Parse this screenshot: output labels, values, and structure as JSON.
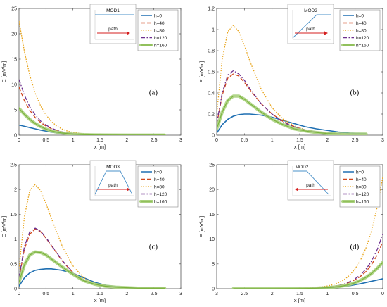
{
  "figure": {
    "background": "#ffffff"
  },
  "chart_data": [
    {
      "type": "line",
      "panel_label": "(a)",
      "xlabel": "x [m]",
      "ylabel": "E [mV/m]",
      "xlim": [
        0,
        3
      ],
      "ylim": [
        0,
        25
      ],
      "xticks": [
        0,
        0.5,
        1,
        1.5,
        2,
        2.5,
        3
      ],
      "yticks": [
        0,
        5,
        10,
        15,
        20,
        25
      ],
      "x_reversed": false,
      "legend_position": "top-right",
      "inset": {
        "title": "MOD1",
        "profile": "flat",
        "path_label": "path",
        "arrow": "right"
      },
      "series": [
        {
          "name": "h=0",
          "color": "#1f6fb2",
          "style": "solid",
          "x": [
            0,
            0.1,
            0.2,
            0.3,
            0.4,
            0.5,
            0.6,
            0.7,
            0.8,
            0.9,
            1.0,
            1.2,
            1.4,
            1.6,
            2.0,
            2.4,
            2.7
          ],
          "y": [
            2.0,
            1.75,
            1.5,
            1.25,
            1.0,
            0.8,
            0.6,
            0.45,
            0.33,
            0.25,
            0.18,
            0.1,
            0.06,
            0.04,
            0.02,
            0.01,
            0.01
          ]
        },
        {
          "name": "h=40",
          "color": "#d0461b",
          "style": "dashed",
          "x": [
            0,
            0.1,
            0.2,
            0.3,
            0.4,
            0.5,
            0.6,
            0.7,
            0.8,
            0.9,
            1.0,
            1.2,
            1.4,
            1.6,
            2.0,
            2.4,
            2.7
          ],
          "y": [
            9.5,
            6.8,
            4.9,
            3.5,
            2.5,
            1.8,
            1.3,
            0.9,
            0.6,
            0.42,
            0.3,
            0.15,
            0.08,
            0.05,
            0.02,
            0.01,
            0.01
          ]
        },
        {
          "name": "h=80",
          "color": "#e8a317",
          "style": "dotted",
          "x": [
            0,
            0.1,
            0.2,
            0.3,
            0.4,
            0.5,
            0.6,
            0.7,
            0.8,
            0.9,
            1.0,
            1.2,
            1.4,
            1.6,
            2.0,
            2.4,
            2.7
          ],
          "y": [
            22.5,
            16.5,
            11.8,
            8.3,
            5.8,
            4.0,
            2.7,
            1.8,
            1.2,
            0.8,
            0.55,
            0.25,
            0.12,
            0.06,
            0.02,
            0.01,
            0.01
          ]
        },
        {
          "name": "h=120",
          "color": "#6d2e8e",
          "style": "dashdot",
          "x": [
            0,
            0.1,
            0.2,
            0.3,
            0.4,
            0.5,
            0.6,
            0.7,
            0.8,
            0.9,
            1.0,
            1.2,
            1.4,
            1.6,
            2.0,
            2.4,
            2.7
          ],
          "y": [
            11.0,
            7.9,
            5.6,
            4.0,
            2.8,
            2.0,
            1.4,
            0.95,
            0.65,
            0.45,
            0.32,
            0.16,
            0.08,
            0.05,
            0.02,
            0.01,
            0.01
          ]
        },
        {
          "name": "h=160",
          "color": "#79b13a",
          "style": "band",
          "x": [
            0,
            0.1,
            0.2,
            0.3,
            0.4,
            0.5,
            0.6,
            0.7,
            0.8,
            0.9,
            1.0,
            1.2,
            1.4,
            1.6,
            2.0,
            2.4,
            2.7
          ],
          "y": [
            5.3,
            4.1,
            3.1,
            2.3,
            1.7,
            1.2,
            0.85,
            0.6,
            0.42,
            0.3,
            0.2,
            0.1,
            0.05,
            0.03,
            0.01,
            0.01,
            0.01
          ]
        }
      ]
    },
    {
      "type": "line",
      "panel_label": "(b)",
      "xlabel": "x [m]",
      "ylabel": "E [mV/m]",
      "xlim": [
        0,
        3
      ],
      "ylim": [
        0,
        1.2
      ],
      "xticks": [
        0,
        0.5,
        1,
        1.5,
        2,
        2.5,
        3
      ],
      "yticks": [
        0,
        0.2,
        0.4,
        0.6,
        0.8,
        1,
        1.2
      ],
      "x_reversed": false,
      "legend_position": "top-right",
      "inset": {
        "title": "MOD2",
        "profile": "ramp-up",
        "path_label": "path",
        "arrow": "right"
      },
      "series": [
        {
          "name": "h=0",
          "color": "#1f6fb2",
          "style": "solid",
          "x": [
            0,
            0.1,
            0.2,
            0.3,
            0.4,
            0.5,
            0.6,
            0.8,
            1.0,
            1.2,
            1.4,
            1.6,
            1.8,
            2.0,
            2.2,
            2.4,
            2.7
          ],
          "y": [
            0.02,
            0.1,
            0.15,
            0.18,
            0.195,
            0.2,
            0.2,
            0.19,
            0.17,
            0.14,
            0.11,
            0.08,
            0.06,
            0.045,
            0.03,
            0.02,
            0.015
          ]
        },
        {
          "name": "h=40",
          "color": "#d0461b",
          "style": "dashed",
          "x": [
            0,
            0.1,
            0.2,
            0.3,
            0.4,
            0.5,
            0.6,
            0.8,
            1.0,
            1.2,
            1.4,
            1.6,
            1.8,
            2.0,
            2.2,
            2.4,
            2.7
          ],
          "y": [
            0.1,
            0.38,
            0.54,
            0.58,
            0.56,
            0.5,
            0.43,
            0.3,
            0.2,
            0.13,
            0.08,
            0.05,
            0.03,
            0.02,
            0.015,
            0.01,
            0.01
          ]
        },
        {
          "name": "h=80",
          "color": "#e8a317",
          "style": "dotted",
          "x": [
            0,
            0.1,
            0.2,
            0.3,
            0.4,
            0.5,
            0.6,
            0.8,
            1.0,
            1.2,
            1.4,
            1.6,
            1.8,
            2.0,
            2.2,
            2.4,
            2.7
          ],
          "y": [
            0.2,
            0.72,
            0.98,
            1.04,
            0.98,
            0.85,
            0.7,
            0.44,
            0.26,
            0.15,
            0.09,
            0.05,
            0.03,
            0.02,
            0.015,
            0.01,
            0.01
          ]
        },
        {
          "name": "h=120",
          "color": "#6d2e8e",
          "style": "dashdot",
          "x": [
            0,
            0.1,
            0.2,
            0.3,
            0.4,
            0.5,
            0.6,
            0.8,
            1.0,
            1.2,
            1.4,
            1.6,
            1.8,
            2.0,
            2.2,
            2.4,
            2.7
          ],
          "y": [
            0.11,
            0.4,
            0.57,
            0.61,
            0.58,
            0.52,
            0.44,
            0.3,
            0.2,
            0.12,
            0.08,
            0.05,
            0.03,
            0.02,
            0.015,
            0.01,
            0.01
          ]
        },
        {
          "name": "h=160",
          "color": "#79b13a",
          "style": "band",
          "x": [
            0,
            0.1,
            0.2,
            0.3,
            0.4,
            0.5,
            0.6,
            0.8,
            1.0,
            1.2,
            1.4,
            1.6,
            1.8,
            2.0,
            2.2,
            2.4,
            2.7
          ],
          "y": [
            0.06,
            0.22,
            0.33,
            0.37,
            0.37,
            0.34,
            0.3,
            0.22,
            0.15,
            0.1,
            0.06,
            0.04,
            0.025,
            0.015,
            0.01,
            0.01,
            0.01
          ]
        }
      ]
    },
    {
      "type": "line",
      "panel_label": "(c)",
      "xlabel": "x [m]",
      "ylabel": "E [mV/m]",
      "xlim": [
        0,
        3
      ],
      "ylim": [
        0,
        2.5
      ],
      "xticks": [
        0,
        0.5,
        1,
        1.5,
        2,
        2.5,
        3
      ],
      "yticks": [
        0,
        0.5,
        1,
        1.5,
        2,
        2.5
      ],
      "x_reversed": false,
      "legend_position": "top-right",
      "inset": {
        "title": "MOD3",
        "profile": "trapezoid",
        "path_label": "path",
        "arrow": "right"
      },
      "series": [
        {
          "name": "h=0",
          "color": "#1f6fb2",
          "style": "solid",
          "x": [
            0,
            0.1,
            0.2,
            0.3,
            0.4,
            0.5,
            0.6,
            0.8,
            1.0,
            1.2,
            1.4,
            1.6,
            1.8,
            2.0,
            2.2,
            2.4,
            2.7
          ],
          "y": [
            0.05,
            0.22,
            0.32,
            0.37,
            0.39,
            0.4,
            0.4,
            0.37,
            0.31,
            0.22,
            0.13,
            0.07,
            0.04,
            0.02,
            0.01,
            0.01,
            0.01
          ]
        },
        {
          "name": "h=40",
          "color": "#d0461b",
          "style": "dashed",
          "x": [
            0,
            0.1,
            0.2,
            0.3,
            0.4,
            0.5,
            0.6,
            0.8,
            1.0,
            1.2,
            1.4,
            1.6,
            1.8,
            2.0,
            2.2,
            2.4,
            2.7
          ],
          "y": [
            0.2,
            0.8,
            1.1,
            1.2,
            1.15,
            1.02,
            0.87,
            0.56,
            0.32,
            0.17,
            0.09,
            0.05,
            0.03,
            0.02,
            0.01,
            0.01,
            0.01
          ]
        },
        {
          "name": "h=80",
          "color": "#e8a317",
          "style": "dotted",
          "x": [
            0,
            0.1,
            0.2,
            0.3,
            0.4,
            0.5,
            0.6,
            0.8,
            1.0,
            1.2,
            1.4,
            1.6,
            1.8,
            2.0,
            2.2,
            2.4,
            2.7
          ],
          "y": [
            0.4,
            1.45,
            1.98,
            2.1,
            1.98,
            1.72,
            1.42,
            0.86,
            0.46,
            0.22,
            0.11,
            0.06,
            0.03,
            0.02,
            0.01,
            0.01,
            0.01
          ]
        },
        {
          "name": "h=120",
          "color": "#6d2e8e",
          "style": "dashdot",
          "x": [
            0,
            0.1,
            0.2,
            0.3,
            0.4,
            0.5,
            0.6,
            0.8,
            1.0,
            1.2,
            1.4,
            1.6,
            1.8,
            2.0,
            2.2,
            2.4,
            2.7
          ],
          "y": [
            0.22,
            0.85,
            1.15,
            1.22,
            1.16,
            1.03,
            0.88,
            0.57,
            0.33,
            0.17,
            0.09,
            0.05,
            0.03,
            0.02,
            0.01,
            0.01,
            0.01
          ]
        },
        {
          "name": "h=160",
          "color": "#79b13a",
          "style": "band",
          "x": [
            0,
            0.1,
            0.2,
            0.3,
            0.4,
            0.5,
            0.6,
            0.8,
            1.0,
            1.2,
            1.4,
            1.6,
            1.8,
            2.0,
            2.2,
            2.4,
            2.7
          ],
          "y": [
            0.13,
            0.48,
            0.68,
            0.74,
            0.73,
            0.68,
            0.6,
            0.44,
            0.29,
            0.16,
            0.09,
            0.05,
            0.03,
            0.02,
            0.01,
            0.01,
            0.01
          ]
        }
      ]
    },
    {
      "type": "line",
      "panel_label": "(d)",
      "xlabel": "x [m]",
      "ylabel": "E [mV/m]",
      "xlim": [
        0,
        3
      ],
      "ylim": [
        0,
        25
      ],
      "xticks": [
        3,
        2.5,
        2,
        1.5,
        1,
        0.5,
        0
      ],
      "yticks": [
        0,
        5,
        10,
        15,
        20,
        25
      ],
      "x_reversed": true,
      "legend_position": "top-right",
      "inset": {
        "title": "MOD2",
        "profile": "ramp-down",
        "path_label": "path",
        "arrow": "left"
      },
      "series": [
        {
          "name": "h=0",
          "color": "#1f6fb2",
          "style": "solid",
          "x": [
            2.7,
            2.4,
            2.0,
            1.6,
            1.4,
            1.2,
            1.0,
            0.9,
            0.8,
            0.7,
            0.6,
            0.5,
            0.4,
            0.3,
            0.2,
            0.1,
            0
          ],
          "y": [
            0.01,
            0.01,
            0.02,
            0.04,
            0.06,
            0.1,
            0.18,
            0.25,
            0.33,
            0.45,
            0.6,
            0.8,
            1.0,
            1.25,
            1.5,
            1.75,
            2.0
          ]
        },
        {
          "name": "h=40",
          "color": "#d0461b",
          "style": "dashed",
          "x": [
            2.7,
            2.4,
            2.0,
            1.6,
            1.4,
            1.2,
            1.0,
            0.9,
            0.8,
            0.7,
            0.6,
            0.5,
            0.4,
            0.3,
            0.2,
            0.1,
            0
          ],
          "y": [
            0.01,
            0.01,
            0.02,
            0.05,
            0.08,
            0.15,
            0.3,
            0.42,
            0.6,
            0.9,
            1.3,
            1.8,
            2.5,
            3.5,
            4.9,
            6.8,
            9.5
          ]
        },
        {
          "name": "h=80",
          "color": "#e8a317",
          "style": "dotted",
          "x": [
            2.7,
            2.4,
            2.0,
            1.6,
            1.4,
            1.2,
            1.0,
            0.9,
            0.8,
            0.7,
            0.6,
            0.5,
            0.4,
            0.3,
            0.2,
            0.1,
            0
          ],
          "y": [
            0.01,
            0.01,
            0.02,
            0.06,
            0.12,
            0.25,
            0.55,
            0.8,
            1.2,
            1.8,
            2.7,
            4.0,
            5.8,
            8.3,
            11.8,
            16.5,
            22.5
          ]
        },
        {
          "name": "h=120",
          "color": "#6d2e8e",
          "style": "dashdot",
          "x": [
            2.7,
            2.4,
            2.0,
            1.6,
            1.4,
            1.2,
            1.0,
            0.9,
            0.8,
            0.7,
            0.6,
            0.5,
            0.4,
            0.3,
            0.2,
            0.1,
            0
          ],
          "y": [
            0.01,
            0.01,
            0.02,
            0.05,
            0.08,
            0.16,
            0.32,
            0.45,
            0.65,
            0.95,
            1.4,
            2.0,
            2.8,
            4.0,
            5.6,
            7.9,
            11.0
          ]
        },
        {
          "name": "h=160",
          "color": "#79b13a",
          "style": "band",
          "x": [
            2.7,
            2.4,
            2.0,
            1.6,
            1.4,
            1.2,
            1.0,
            0.9,
            0.8,
            0.7,
            0.6,
            0.5,
            0.4,
            0.3,
            0.2,
            0.1,
            0
          ],
          "y": [
            0.01,
            0.01,
            0.01,
            0.03,
            0.05,
            0.1,
            0.2,
            0.3,
            0.42,
            0.6,
            0.85,
            1.2,
            1.7,
            2.3,
            3.1,
            4.1,
            5.3
          ]
        }
      ]
    }
  ]
}
